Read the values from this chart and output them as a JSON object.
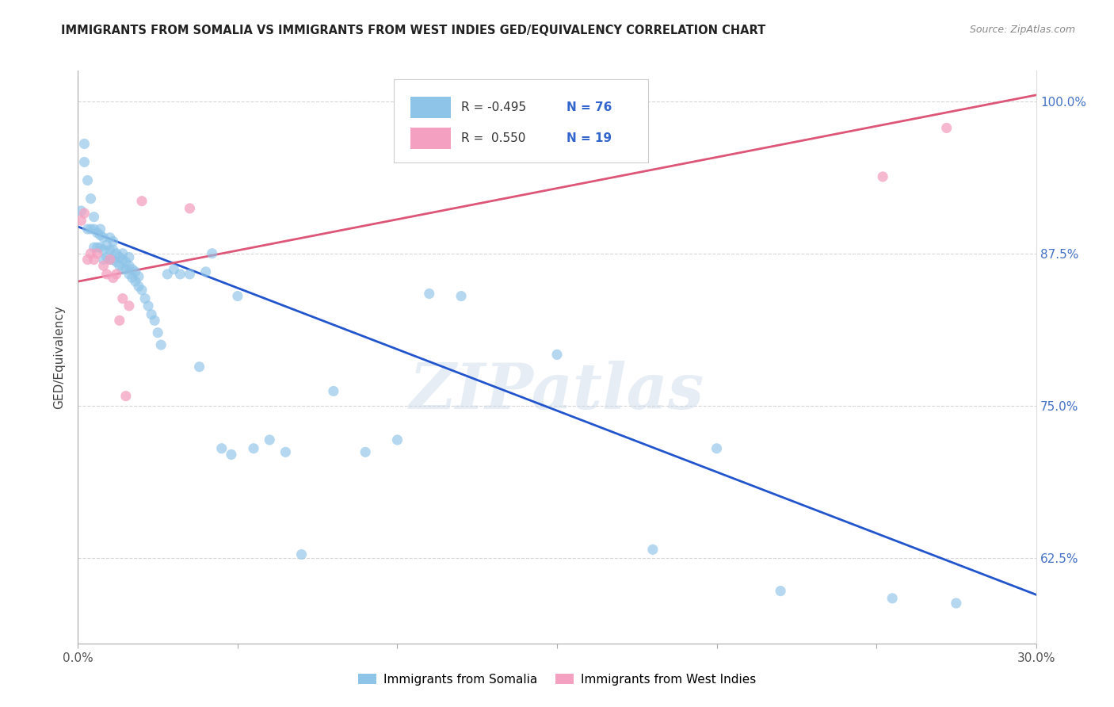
{
  "title": "IMMIGRANTS FROM SOMALIA VS IMMIGRANTS FROM WEST INDIES GED/EQUIVALENCY CORRELATION CHART",
  "source": "Source: ZipAtlas.com",
  "ylabel": "GED/Equivalency",
  "xmin": 0.0,
  "xmax": 0.3,
  "ymin": 0.555,
  "ymax": 1.025,
  "xticks": [
    0.0,
    0.05,
    0.1,
    0.15,
    0.2,
    0.25,
    0.3
  ],
  "xticklabels": [
    "0.0%",
    "",
    "",
    "",
    "",
    "",
    "30.0%"
  ],
  "yticks": [
    0.625,
    0.75,
    0.875,
    1.0
  ],
  "yticklabels": [
    "62.5%",
    "75.0%",
    "87.5%",
    "100.0%"
  ],
  "legend_label1": "Immigrants from Somalia",
  "legend_label2": "Immigrants from West Indies",
  "corr_R1": "-0.495",
  "corr_N1": "76",
  "corr_R2": "0.550",
  "corr_N2": "19",
  "color_somalia": "#8EC4E8",
  "color_westindies": "#F4A0C0",
  "color_somalia_line": "#2255CC",
  "color_westindies_line": "#DD5577",
  "watermark": "ZIPatlas",
  "blue_line_x0": 0.0,
  "blue_line_y0": 0.897,
  "blue_line_x1": 0.3,
  "blue_line_y1": 0.595,
  "pink_line_x0": 0.0,
  "pink_line_y0": 0.852,
  "pink_line_x1": 0.3,
  "pink_line_y1": 1.005,
  "somalia_x": [
    0.001,
    0.002,
    0.002,
    0.003,
    0.003,
    0.004,
    0.004,
    0.005,
    0.005,
    0.005,
    0.006,
    0.006,
    0.007,
    0.007,
    0.007,
    0.008,
    0.008,
    0.008,
    0.009,
    0.009,
    0.01,
    0.01,
    0.01,
    0.011,
    0.011,
    0.011,
    0.012,
    0.012,
    0.013,
    0.013,
    0.014,
    0.014,
    0.014,
    0.015,
    0.015,
    0.016,
    0.016,
    0.016,
    0.017,
    0.017,
    0.018,
    0.018,
    0.019,
    0.019,
    0.02,
    0.021,
    0.022,
    0.023,
    0.024,
    0.025,
    0.026,
    0.028,
    0.03,
    0.032,
    0.035,
    0.038,
    0.04,
    0.042,
    0.045,
    0.048,
    0.05,
    0.055,
    0.06,
    0.065,
    0.07,
    0.08,
    0.09,
    0.1,
    0.11,
    0.12,
    0.15,
    0.18,
    0.2,
    0.22,
    0.255,
    0.275
  ],
  "somalia_y": [
    0.91,
    0.965,
    0.95,
    0.895,
    0.935,
    0.895,
    0.92,
    0.88,
    0.895,
    0.905,
    0.88,
    0.892,
    0.88,
    0.895,
    0.89,
    0.87,
    0.878,
    0.888,
    0.872,
    0.882,
    0.87,
    0.878,
    0.888,
    0.87,
    0.878,
    0.885,
    0.868,
    0.875,
    0.865,
    0.872,
    0.862,
    0.87,
    0.875,
    0.862,
    0.868,
    0.858,
    0.865,
    0.872,
    0.855,
    0.862,
    0.852,
    0.86,
    0.848,
    0.856,
    0.845,
    0.838,
    0.832,
    0.825,
    0.82,
    0.81,
    0.8,
    0.858,
    0.862,
    0.858,
    0.858,
    0.782,
    0.86,
    0.875,
    0.715,
    0.71,
    0.84,
    0.715,
    0.722,
    0.712,
    0.628,
    0.762,
    0.712,
    0.722,
    0.842,
    0.84,
    0.792,
    0.632,
    0.715,
    0.598,
    0.592,
    0.588
  ],
  "westindies_x": [
    0.001,
    0.002,
    0.003,
    0.004,
    0.005,
    0.006,
    0.008,
    0.009,
    0.01,
    0.011,
    0.012,
    0.013,
    0.014,
    0.015,
    0.016,
    0.02,
    0.035,
    0.252,
    0.272
  ],
  "westindies_y": [
    0.902,
    0.908,
    0.87,
    0.875,
    0.87,
    0.875,
    0.865,
    0.858,
    0.87,
    0.855,
    0.858,
    0.82,
    0.838,
    0.758,
    0.832,
    0.918,
    0.912,
    0.938,
    0.978
  ]
}
